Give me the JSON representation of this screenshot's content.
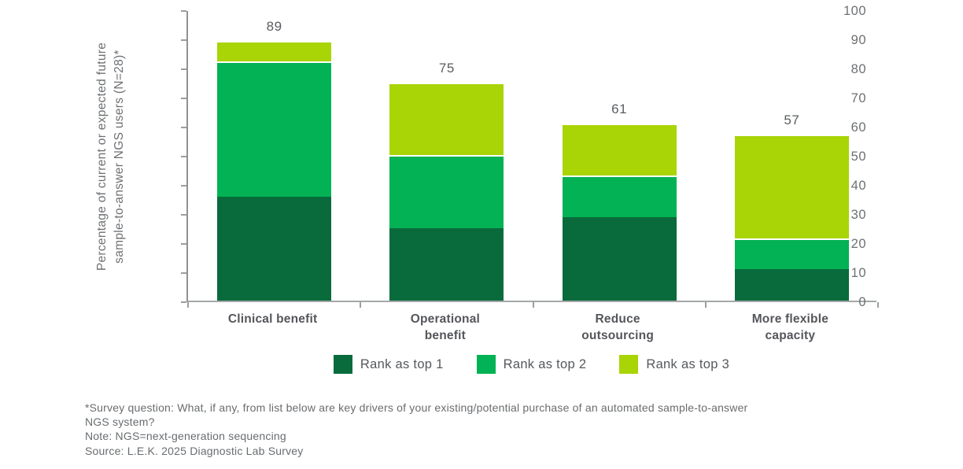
{
  "chart_data": {
    "type": "bar",
    "subtype": "stacked-vertical",
    "categories": [
      "Clinical benefit",
      "Operational benefit",
      "Reduce outsourcing",
      "More flexible capacity"
    ],
    "category_label_lines": [
      [
        "Clinical benefit"
      ],
      [
        "Operational",
        "benefit"
      ],
      [
        "Reduce",
        "outsourcing"
      ],
      [
        "More flexible",
        "capacity"
      ]
    ],
    "series": [
      {
        "name": "Rank as top 1",
        "color": "#096b3b",
        "values": [
          35.7,
          25.0,
          28.6,
          10.7
        ]
      },
      {
        "name": "Rank as top 2",
        "color": "#03b254",
        "values": [
          46.4,
          25.0,
          14.3,
          10.7
        ]
      },
      {
        "name": "Rank as top 3",
        "color": "#a9d405",
        "values": [
          7.1,
          25.0,
          17.9,
          35.7
        ]
      }
    ],
    "totals": [
      "89",
      "75",
      "61",
      "57"
    ],
    "ylabel": "Percentage of current or expected future sample-to-answer NGS users (N=28)*",
    "ylabel_lines": [
      "Percentage of current or expected future",
      "sample-to-answer NGS users (N=28)*"
    ],
    "yticks": [
      0,
      10,
      20,
      30,
      40,
      50,
      60,
      70,
      80,
      90,
      100
    ],
    "ylim": [
      0,
      100
    ],
    "xlabel": "",
    "title": "",
    "grid": false,
    "legend_position": "bottom"
  },
  "footnotes": {
    "line1": "*Survey question: What, if any, from list below are key drivers of your existing/potential purchase of an automated sample-to-answer",
    "line2": "NGS system?",
    "line3": "Note: NGS=next-generation sequencing",
    "line4": "Source: L.E.K. 2025 Diagnostic Lab Survey"
  },
  "colors": {
    "rank1": "#096b3b",
    "rank2": "#03b254",
    "rank3": "#a9d405",
    "axis": "#9b9ea0",
    "text_gray": "#6d7073",
    "category_text": "#54565a"
  }
}
